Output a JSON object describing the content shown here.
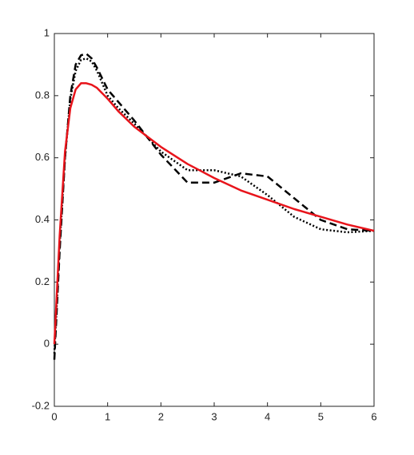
{
  "chart_data": {
    "type": "line",
    "x": [
      0,
      0.1,
      0.2,
      0.3,
      0.4,
      0.5,
      0.6,
      0.7,
      0.8,
      1,
      1.2,
      1.5,
      2,
      2.5,
      3,
      3.5,
      4,
      4.5,
      5,
      5.5,
      6
    ],
    "series": [
      {
        "color": "#e8141b",
        "style": "solid",
        "values": [
          0,
          0.35,
          0.62,
          0.76,
          0.82,
          0.84,
          0.84,
          0.835,
          0.825,
          0.79,
          0.75,
          0.7,
          0.635,
          0.58,
          0.535,
          0.495,
          0.465,
          0.435,
          0.41,
          0.385,
          0.365
        ]
      },
      {
        "color": "#000000",
        "style": "dashed",
        "values": [
          -0.05,
          0.3,
          0.6,
          0.8,
          0.9,
          0.93,
          0.935,
          0.92,
          0.89,
          0.82,
          0.78,
          0.72,
          0.61,
          0.52,
          0.52,
          0.55,
          0.54,
          0.47,
          0.4,
          0.37,
          0.365
        ]
      },
      {
        "color": "#000000",
        "style": "dotted",
        "values": [
          -0.03,
          0.32,
          0.6,
          0.79,
          0.88,
          0.915,
          0.92,
          0.91,
          0.88,
          0.8,
          0.76,
          0.71,
          0.62,
          0.56,
          0.56,
          0.54,
          0.48,
          0.41,
          0.37,
          0.36,
          0.365
        ]
      }
    ],
    "xlim": [
      0,
      6
    ],
    "xticks": [
      0,
      1,
      2,
      3,
      4,
      5,
      6
    ],
    "ylim": [
      -0.2,
      1
    ],
    "yticks": [
      -0.2,
      0,
      0.2,
      0.4,
      0.6,
      0.8,
      1
    ]
  }
}
